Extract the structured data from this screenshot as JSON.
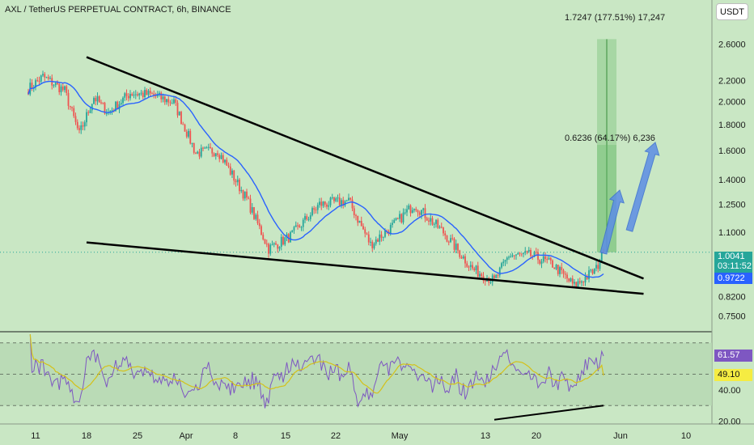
{
  "header": {
    "title": "AXL / TetherUS PERPETUAL CONTRACT, 6h, BINANCE",
    "currency_button": "USDT"
  },
  "colors": {
    "background": "#c9e7c4",
    "up_candle": "#26a69a",
    "down_candle": "#ef5350",
    "ma_line": "#2962ff",
    "rsi_line": "#7e57c2",
    "rsi_ma": "#d4c11a",
    "target_box": "#66bb6a"
  },
  "price_panel": {
    "y_ticks": [
      "2.6000",
      "2.2000",
      "2.0000",
      "1.8000",
      "1.6000",
      "1.4000",
      "1.2500",
      "1.1000",
      "0.8200",
      "0.7500"
    ],
    "scale": "log",
    "current_price": "1.0041",
    "countdown": "03:11:52",
    "ma_value": "0.9722",
    "target_1_label": "1.7247 (177.51%) 17,247",
    "target_2_label": "0.6236 (64.17%) 6,236"
  },
  "rsi_panel": {
    "y_ticks": [
      "40.00",
      "20.00"
    ],
    "rsi_value": "61.57",
    "rsi_ma_value": "49.10"
  },
  "x_axis": {
    "ticks": [
      "11",
      "18",
      "25",
      "Apr",
      "8",
      "15",
      "22",
      "May",
      "13",
      "20",
      "Jun",
      "10"
    ]
  },
  "chart_data": {
    "type": "candlestick",
    "title": "AXL / TetherUS PERPETUAL CONTRACT, 6h, BINANCE",
    "x_ticks": [
      "11",
      "18",
      "25",
      "Apr",
      "8",
      "15",
      "22",
      "May",
      "13",
      "20",
      "Jun",
      "10"
    ],
    "y_scale": "log",
    "y_ticks": [
      2.6,
      2.2,
      2.0,
      1.8,
      1.6,
      1.4,
      1.25,
      1.1,
      0.82,
      0.75
    ],
    "close_path": [
      {
        "date": "Mar 10",
        "close": 2.12
      },
      {
        "date": "Mar 12",
        "close": 2.24
      },
      {
        "date": "Mar 15",
        "close": 2.1
      },
      {
        "date": "Mar 17",
        "close": 1.72
      },
      {
        "date": "Mar 19",
        "close": 2.04
      },
      {
        "date": "Mar 21",
        "close": 1.9
      },
      {
        "date": "Mar 24",
        "close": 2.08
      },
      {
        "date": "Mar 27",
        "close": 2.06
      },
      {
        "date": "Mar 30",
        "close": 1.99
      },
      {
        "date": "Apr 2",
        "close": 1.58
      },
      {
        "date": "Apr 5",
        "close": 1.6
      },
      {
        "date": "Apr 9",
        "close": 1.28
      },
      {
        "date": "Apr 12",
        "close": 1.02
      },
      {
        "date": "Apr 15",
        "close": 1.08
      },
      {
        "date": "Apr 19",
        "close": 1.25
      },
      {
        "date": "Apr 23",
        "close": 1.27
      },
      {
        "date": "Apr 26",
        "close": 1.04
      },
      {
        "date": "Apr 29",
        "close": 1.13
      },
      {
        "date": "May 2",
        "close": 1.25
      },
      {
        "date": "May 6",
        "close": 1.1
      },
      {
        "date": "May 10",
        "close": 0.93
      },
      {
        "date": "May 13",
        "close": 0.88
      },
      {
        "date": "May 15",
        "close": 0.99
      },
      {
        "date": "May 18",
        "close": 0.99
      },
      {
        "date": "May 21",
        "close": 0.95
      },
      {
        "date": "May 24",
        "close": 0.86
      },
      {
        "date": "May 27",
        "close": 0.93
      },
      {
        "date": "May 28",
        "close": 1.0041
      }
    ],
    "annotations": [
      "Falling wedge: upper trendline from ~2.45 (Mar 18) to ~0.89 (Jun 1)",
      "Falling wedge: lower trendline from ~1.05 (Mar 18) to ~0.83 (Jun 1)",
      "Target 1: 1.7247 (177.51%) 17,247",
      "Target 2: 0.6236 (64.17%) 6,236"
    ],
    "rsi": {
      "last": 61.57,
      "ma_last": 49.1,
      "bullish_divergence": "rising support line from May 13 to May 28"
    }
  }
}
